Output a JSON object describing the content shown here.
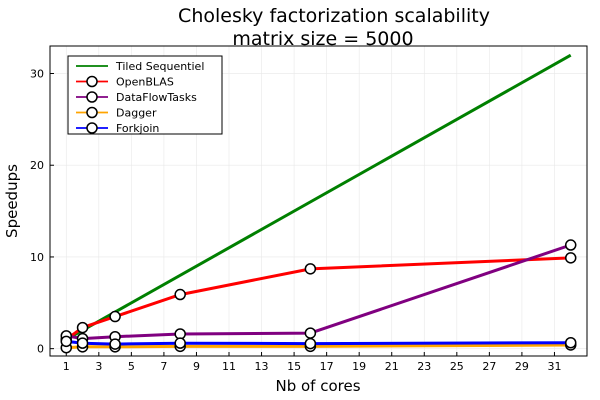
{
  "chart_data": {
    "type": "line",
    "title": "Cholesky factorization scalability",
    "subtitle": "matrix size = 5000",
    "xlabel": "Nb of cores",
    "ylabel": "Speedups",
    "xlim": [
      0,
      33
    ],
    "ylim": [
      -0.8,
      33
    ],
    "xticks": [
      1,
      3,
      5,
      7,
      9,
      11,
      13,
      15,
      17,
      19,
      21,
      23,
      25,
      27,
      29,
      31
    ],
    "yticks": [
      0,
      10,
      20,
      30
    ],
    "grid": true,
    "legend_position": "top-left",
    "series": [
      {
        "name": "Tiled Sequentiel",
        "color": "#008000",
        "markers": false,
        "x": [
          1,
          32
        ],
        "y": [
          1,
          32
        ]
      },
      {
        "name": "OpenBLAS",
        "color": "#ff0000",
        "markers": true,
        "x": [
          1,
          2,
          4,
          8,
          16,
          32
        ],
        "y": [
          1.0,
          2.3,
          3.5,
          5.9,
          8.7,
          9.9
        ]
      },
      {
        "name": "DataFlowTasks",
        "color": "#800080",
        "markers": true,
        "x": [
          1,
          2,
          4,
          8,
          16,
          32
        ],
        "y": [
          1.4,
          1.1,
          1.3,
          1.6,
          1.7,
          11.3
        ]
      },
      {
        "name": "Dagger",
        "color": "#ffa500",
        "markers": true,
        "x": [
          1,
          2,
          4,
          8,
          16,
          32
        ],
        "y": [
          0.1,
          0.2,
          0.2,
          0.25,
          0.25,
          0.4
        ]
      },
      {
        "name": "Forkjoin",
        "color": "#0000ff",
        "markers": true,
        "x": [
          1,
          2,
          4,
          8,
          16,
          32
        ],
        "y": [
          0.8,
          0.6,
          0.5,
          0.6,
          0.55,
          0.65
        ]
      }
    ]
  }
}
